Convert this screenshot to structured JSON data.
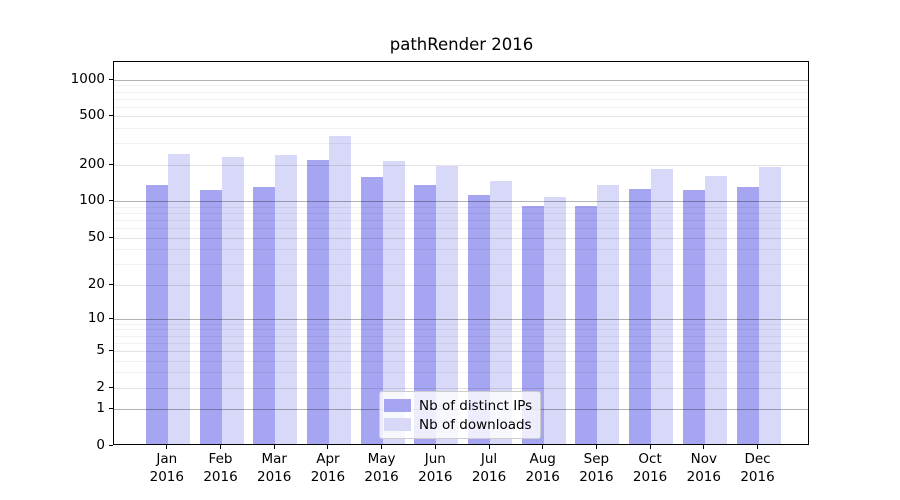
{
  "chart_data": {
    "type": "bar",
    "title": "pathRender 2016",
    "categories": [
      "Jan 2016",
      "Feb 2016",
      "Mar 2016",
      "Apr 2016",
      "May 2016",
      "Jun 2016",
      "Jul 2016",
      "Aug 2016",
      "Sep 2016",
      "Oct 2016",
      "Nov 2016",
      "Dec 2016"
    ],
    "month_labels": [
      "Jan",
      "Feb",
      "Mar",
      "Apr",
      "May",
      "Jun",
      "Jul",
      "Aug",
      "Sep",
      "Oct",
      "Nov",
      "Dec"
    ],
    "year_label": "2016",
    "series": [
      {
        "name": "Nb of distinct IPs",
        "color": "#a5a5f2",
        "values": [
          131,
          119,
          125,
          208,
          152,
          130,
          108,
          88,
          88,
          120,
          118,
          126
        ]
      },
      {
        "name": "Nb of downloads",
        "color": "#d8d8f8",
        "values": [
          236,
          221,
          232,
          330,
          206,
          189,
          140,
          103,
          130,
          176,
          154,
          184
        ]
      }
    ],
    "xlabel": "",
    "ylabel": "",
    "yscale": "log1p",
    "ylim": [
      0,
      1400
    ],
    "yticks": [
      0,
      1,
      2,
      5,
      10,
      20,
      50,
      100,
      200,
      500,
      1000
    ],
    "ytick_labels": [
      "0",
      "1",
      "2",
      "5",
      "10",
      "20",
      "50",
      "100",
      "200",
      "500",
      "1000"
    ],
    "decade_gridlines": [
      1,
      10,
      100,
      1000
    ],
    "minor_gridlines": [
      3,
      4,
      6,
      7,
      8,
      9,
      30,
      40,
      60,
      70,
      80,
      90,
      300,
      400,
      600,
      700,
      800,
      900
    ],
    "grid": true,
    "legend_position": "lower center"
  }
}
